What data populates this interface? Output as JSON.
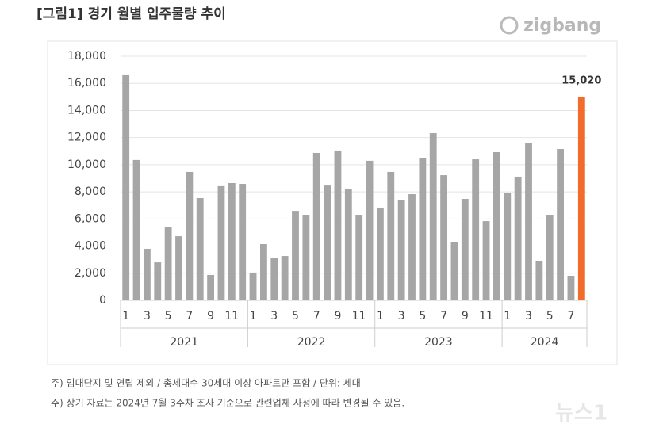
{
  "chart_data": {
    "type": "bar",
    "title": "[그림1] 경기 월별 입주물량 추이",
    "brand": "zigbang",
    "groups": [
      {
        "label": "2021",
        "categories": [
          "1",
          null,
          "3",
          null,
          "5",
          null,
          "7",
          null,
          "9",
          null,
          "11",
          null
        ]
      },
      {
        "label": "2022",
        "categories": [
          "1",
          null,
          "3",
          null,
          "5",
          null,
          "7",
          null,
          "9",
          null,
          "11",
          null
        ]
      },
      {
        "label": "2023",
        "categories": [
          "1",
          null,
          "3",
          null,
          "5",
          null,
          "7",
          null,
          "9",
          null,
          "11",
          null
        ]
      },
      {
        "label": "2024",
        "categories": [
          "1",
          null,
          "3",
          null,
          "5",
          null,
          "7",
          null
        ]
      }
    ],
    "values": [
      16600,
      10350,
      3800,
      2800,
      5380,
      4730,
      9470,
      7540,
      1870,
      8420,
      8650,
      8590,
      2050,
      4150,
      3100,
      3270,
      6600,
      6310,
      10870,
      8470,
      11050,
      8240,
      6310,
      10290,
      6840,
      9470,
      7420,
      7830,
      10460,
      12330,
      9230,
      4320,
      7480,
      10400,
      5840,
      10930,
      7890,
      9120,
      11570,
      2920,
      6310,
      11160,
      1810,
      15020
    ],
    "value_labels": [
      null,
      null,
      null,
      null,
      null,
      null,
      null,
      null,
      null,
      null,
      null,
      null,
      null,
      null,
      null,
      null,
      null,
      null,
      null,
      null,
      null,
      null,
      null,
      null,
      null,
      null,
      null,
      null,
      null,
      null,
      null,
      null,
      null,
      null,
      null,
      null,
      null,
      null,
      null,
      null,
      null,
      null,
      null,
      "15,020"
    ],
    "colors": [
      "#a6a6a6",
      "#a6a6a6",
      "#a6a6a6",
      "#a6a6a6",
      "#a6a6a6",
      "#a6a6a6",
      "#a6a6a6",
      "#a6a6a6",
      "#a6a6a6",
      "#a6a6a6",
      "#a6a6a6",
      "#a6a6a6",
      "#a6a6a6",
      "#a6a6a6",
      "#a6a6a6",
      "#a6a6a6",
      "#a6a6a6",
      "#a6a6a6",
      "#a6a6a6",
      "#a6a6a6",
      "#a6a6a6",
      "#a6a6a6",
      "#a6a6a6",
      "#a6a6a6",
      "#a6a6a6",
      "#a6a6a6",
      "#a6a6a6",
      "#a6a6a6",
      "#a6a6a6",
      "#a6a6a6",
      "#a6a6a6",
      "#a6a6a6",
      "#a6a6a6",
      "#a6a6a6",
      "#a6a6a6",
      "#a6a6a6",
      "#a6a6a6",
      "#a6a6a6",
      "#a6a6a6",
      "#a6a6a6",
      "#a6a6a6",
      "#a6a6a6",
      "#a6a6a6",
      "#f26b2a"
    ],
    "ylim": [
      0,
      18000
    ],
    "yticks": [
      0,
      {
        "value": 2000,
        "label": "2,000"
      },
      {
        "value": 4000,
        "label": "4,000"
      },
      {
        "value": 6000,
        "label": "6,000"
      },
      {
        "value": 8000,
        "label": "8,000"
      },
      {
        "value": 10000,
        "label": "10,000"
      },
      {
        "value": 12000,
        "label": "12,000"
      },
      {
        "value": 14000,
        "label": "14,000"
      },
      {
        "value": 16000,
        "label": "16,000"
      },
      {
        "value": 18000,
        "label": "18,000"
      }
    ],
    "grid": true,
    "notes": [
      "주) 임대단지 및 연립 제외 / 총세대수 30세대 이상 아파트만 포함 / 단위: 세대",
      "주) 상기 자료는 2024년 7월 3주차 조사 기준으로 관련업체 사정에 따라 변경될 수 있음."
    ],
    "watermark": "뉴스1"
  }
}
